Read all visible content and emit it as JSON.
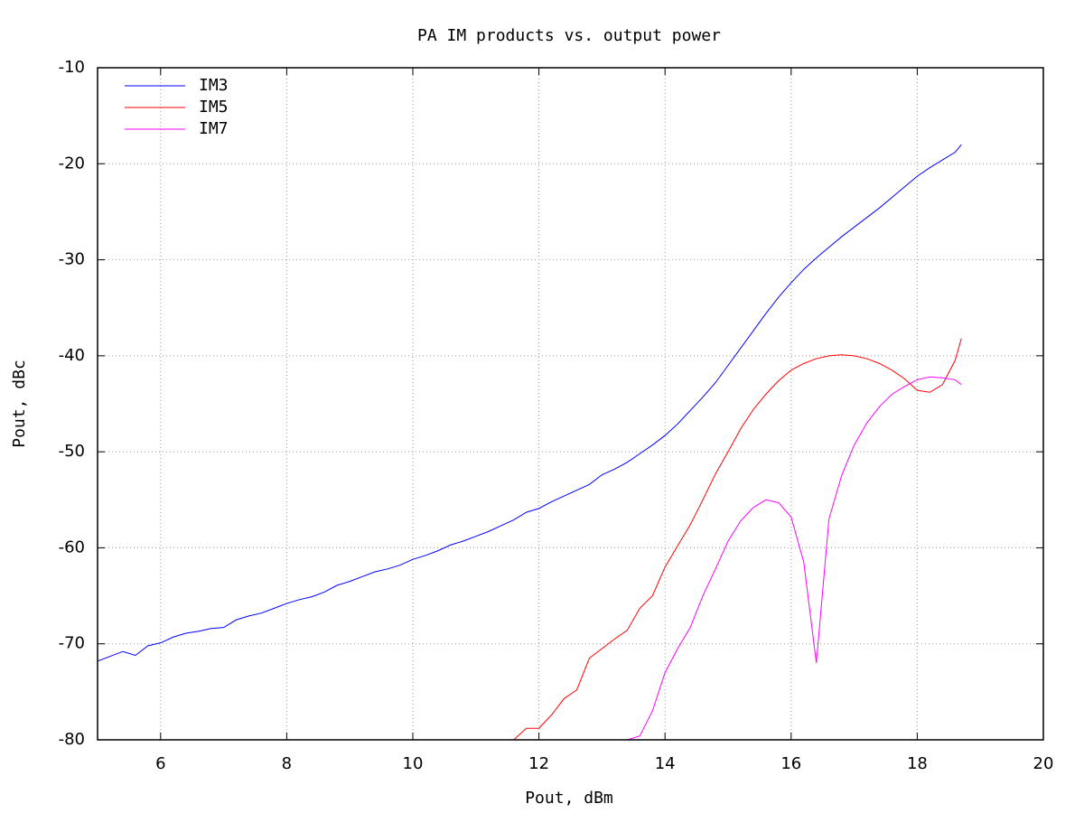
{
  "chart_data": {
    "type": "line",
    "title": "PA IM products vs. output power",
    "x_label": "Pout, dBm",
    "y_label": "Pout, dBc",
    "xlim": [
      5,
      20
    ],
    "xticks": [
      6,
      8,
      10,
      12,
      14,
      16,
      18,
      20
    ],
    "ylim": [
      -80,
      -10
    ],
    "yticks": [
      -80,
      -70,
      -60,
      -50,
      -40,
      -30,
      -20,
      -10
    ],
    "grid": true,
    "legend": "top-left",
    "x": [
      5.0,
      5.2,
      5.4,
      5.6,
      5.8,
      6.0,
      6.2,
      6.4,
      6.6,
      6.8,
      7.0,
      7.2,
      7.4,
      7.6,
      7.8,
      8.0,
      8.2,
      8.4,
      8.6,
      8.8,
      9.0,
      9.2,
      9.4,
      9.6,
      9.8,
      10.0,
      10.2,
      10.4,
      10.6,
      10.8,
      11.0,
      11.2,
      11.4,
      11.6,
      11.8,
      12.0,
      12.2,
      12.4,
      12.6,
      12.8,
      13.0,
      13.2,
      13.4,
      13.6,
      13.8,
      14.0,
      14.2,
      14.4,
      14.6,
      14.8,
      15.0,
      15.2,
      15.4,
      15.6,
      15.8,
      16.0,
      16.2,
      16.4,
      16.6,
      16.8,
      17.0,
      17.2,
      17.4,
      17.6,
      17.8,
      18.0,
      18.2,
      18.4,
      18.6,
      18.7
    ],
    "series": [
      {
        "name": "IM3",
        "color": "#0000ff",
        "values": [
          -71.8,
          -71.3,
          -70.8,
          -71.2,
          -70.2,
          -69.9,
          -69.3,
          -68.9,
          -68.7,
          -68.4,
          -68.3,
          -67.5,
          -67.1,
          -66.8,
          -66.3,
          -65.8,
          -65.4,
          -65.1,
          -64.6,
          -63.9,
          -63.5,
          -63.0,
          -62.5,
          -62.2,
          -61.8,
          -61.2,
          -60.8,
          -60.3,
          -59.7,
          -59.3,
          -58.8,
          -58.3,
          -57.7,
          -57.1,
          -56.3,
          -55.9,
          -55.2,
          -54.6,
          -54.0,
          -53.4,
          -52.4,
          -51.8,
          -51.1,
          -50.2,
          -49.3,
          -48.3,
          -47.1,
          -45.7,
          -44.3,
          -42.8,
          -41.0,
          -39.2,
          -37.4,
          -35.6,
          -33.9,
          -32.4,
          -31.0,
          -29.8,
          -28.7,
          -27.6,
          -26.6,
          -25.6,
          -24.6,
          -23.5,
          -22.4,
          -21.3,
          -20.4,
          -19.6,
          -18.8,
          -18.0
        ]
      },
      {
        "name": "IM5",
        "color": "#ff0000",
        "values": [
          null,
          null,
          null,
          null,
          null,
          null,
          null,
          null,
          null,
          null,
          null,
          null,
          null,
          null,
          null,
          null,
          null,
          null,
          null,
          null,
          null,
          null,
          null,
          null,
          null,
          null,
          null,
          null,
          null,
          null,
          null,
          null,
          null,
          -80.0,
          -78.8,
          -78.8,
          -77.4,
          -75.7,
          -74.8,
          -71.5,
          -70.5,
          -69.5,
          -68.6,
          -66.3,
          -65.0,
          -62.0,
          -59.8,
          -57.6,
          -55.0,
          -52.3,
          -50.0,
          -47.6,
          -45.6,
          -44.0,
          -42.6,
          -41.5,
          -40.8,
          -40.3,
          -40.0,
          -39.9,
          -40.0,
          -40.3,
          -40.8,
          -41.5,
          -42.4,
          -43.6,
          -43.8,
          -43.0,
          -40.5,
          -38.2
        ]
      },
      {
        "name": "IM7",
        "color": "#ff00ff",
        "values": [
          null,
          null,
          null,
          null,
          null,
          null,
          null,
          null,
          null,
          null,
          null,
          null,
          null,
          null,
          null,
          null,
          null,
          null,
          null,
          null,
          null,
          null,
          null,
          null,
          null,
          null,
          null,
          null,
          null,
          null,
          null,
          null,
          null,
          null,
          null,
          null,
          null,
          null,
          null,
          null,
          null,
          null,
          -80.0,
          -79.6,
          -77.0,
          -73.0,
          -70.5,
          -68.3,
          -65.0,
          -62.2,
          -59.3,
          -57.2,
          -55.8,
          -55.0,
          -55.3,
          -56.8,
          -61.5,
          -72.0,
          -57.0,
          -52.5,
          -49.3,
          -47.0,
          -45.3,
          -44.0,
          -43.2,
          -42.5,
          -42.2,
          -42.3,
          -42.5,
          -43.0
        ]
      }
    ]
  }
}
